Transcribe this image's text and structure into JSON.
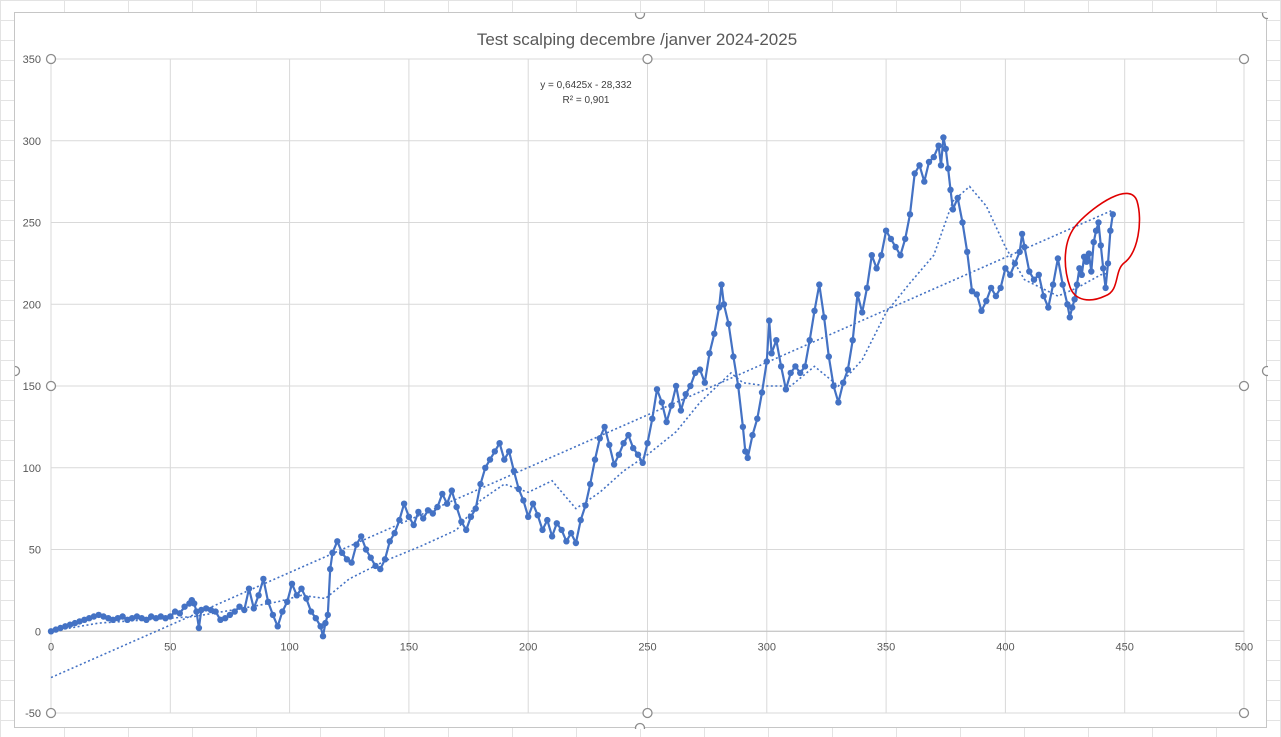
{
  "chart_data": {
    "type": "line",
    "title": "Test scalping decembre /janver 2024-2025",
    "xlabel": "",
    "ylabel": "",
    "xlim": [
      0,
      500
    ],
    "ylim": [
      -50,
      350
    ],
    "x_ticks": [
      0,
      50,
      100,
      150,
      200,
      250,
      300,
      350,
      400,
      450,
      500
    ],
    "y_ticks": [
      -50,
      0,
      50,
      100,
      150,
      200,
      250,
      300,
      350
    ],
    "x_tick_labels": [
      "0",
      "50",
      "100",
      "150",
      "200",
      "250",
      "300",
      "350",
      "400",
      "450",
      "500"
    ],
    "y_tick_labels": [
      "-50",
      "0",
      "50",
      "100",
      "150",
      "200",
      "250",
      "300",
      "350"
    ],
    "grid": true,
    "legend": "none",
    "series_color": "#4472C4",
    "annotation_color": "#E00000",
    "trendline": {
      "type": "linear",
      "slope": 0.6425,
      "intercept": -28.332,
      "x_range": [
        0,
        445
      ],
      "equation_label": "y = 0,6425x - 28,332",
      "r2_label": "R² = 0,901"
    },
    "moving_average": {
      "points": [
        [
          0,
          0
        ],
        [
          20,
          5
        ],
        [
          40,
          7
        ],
        [
          60,
          9
        ],
        [
          80,
          14
        ],
        [
          95,
          18
        ],
        [
          105,
          22
        ],
        [
          115,
          20
        ],
        [
          125,
          32
        ],
        [
          140,
          43
        ],
        [
          155,
          52
        ],
        [
          170,
          62
        ],
        [
          180,
          80
        ],
        [
          190,
          90
        ],
        [
          200,
          85
        ],
        [
          210,
          92
        ],
        [
          220,
          75
        ],
        [
          230,
          85
        ],
        [
          240,
          98
        ],
        [
          250,
          108
        ],
        [
          262,
          122
        ],
        [
          272,
          140
        ],
        [
          285,
          158
        ],
        [
          290,
          152
        ],
        [
          300,
          150
        ],
        [
          310,
          150
        ],
        [
          320,
          162
        ],
        [
          330,
          150
        ],
        [
          340,
          166
        ],
        [
          350,
          195
        ],
        [
          360,
          213
        ],
        [
          370,
          230
        ],
        [
          378,
          263
        ],
        [
          385,
          272
        ],
        [
          392,
          260
        ],
        [
          400,
          235
        ],
        [
          408,
          215
        ],
        [
          415,
          210
        ],
        [
          422,
          205
        ],
        [
          430,
          210
        ],
        [
          440,
          218
        ],
        [
          443,
          219
        ]
      ]
    },
    "series": [
      {
        "points": [
          [
            0,
            0
          ],
          [
            2,
            1
          ],
          [
            4,
            2
          ],
          [
            6,
            3
          ],
          [
            8,
            4
          ],
          [
            10,
            5
          ],
          [
            12,
            6
          ],
          [
            14,
            7
          ],
          [
            16,
            8
          ],
          [
            18,
            9
          ],
          [
            20,
            10
          ],
          [
            22,
            9
          ],
          [
            24,
            8
          ],
          [
            26,
            7
          ],
          [
            28,
            8
          ],
          [
            30,
            9
          ],
          [
            32,
            7
          ],
          [
            34,
            8
          ],
          [
            36,
            9
          ],
          [
            38,
            8
          ],
          [
            40,
            7
          ],
          [
            42,
            9
          ],
          [
            44,
            8
          ],
          [
            46,
            9
          ],
          [
            48,
            8
          ],
          [
            50,
            9
          ],
          [
            52,
            12
          ],
          [
            54,
            11
          ],
          [
            56,
            15
          ],
          [
            58,
            17
          ],
          [
            59,
            19
          ],
          [
            60,
            17
          ],
          [
            61,
            12
          ],
          [
            62,
            2
          ],
          [
            63,
            13
          ],
          [
            65,
            14
          ],
          [
            67,
            13
          ],
          [
            69,
            12
          ],
          [
            71,
            7
          ],
          [
            73,
            8
          ],
          [
            75,
            10
          ],
          [
            77,
            12
          ],
          [
            79,
            15
          ],
          [
            81,
            13
          ],
          [
            83,
            26
          ],
          [
            85,
            14
          ],
          [
            87,
            22
          ],
          [
            89,
            32
          ],
          [
            91,
            18
          ],
          [
            93,
            10
          ],
          [
            95,
            3
          ],
          [
            97,
            12
          ],
          [
            99,
            18
          ],
          [
            101,
            29
          ],
          [
            103,
            22
          ],
          [
            105,
            26
          ],
          [
            107,
            20
          ],
          [
            109,
            12
          ],
          [
            111,
            8
          ],
          [
            113,
            3
          ],
          [
            114,
            -3
          ],
          [
            115,
            5
          ],
          [
            116,
            10
          ],
          [
            117,
            38
          ],
          [
            118,
            48
          ],
          [
            120,
            55
          ],
          [
            122,
            48
          ],
          [
            124,
            44
          ],
          [
            126,
            42
          ],
          [
            128,
            53
          ],
          [
            130,
            58
          ],
          [
            132,
            50
          ],
          [
            134,
            45
          ],
          [
            136,
            40
          ],
          [
            138,
            38
          ],
          [
            140,
            44
          ],
          [
            142,
            55
          ],
          [
            144,
            60
          ],
          [
            146,
            68
          ],
          [
            148,
            78
          ],
          [
            150,
            70
          ],
          [
            152,
            65
          ],
          [
            154,
            73
          ],
          [
            156,
            69
          ],
          [
            158,
            74
          ],
          [
            160,
            72
          ],
          [
            162,
            76
          ],
          [
            164,
            84
          ],
          [
            166,
            78
          ],
          [
            168,
            86
          ],
          [
            170,
            76
          ],
          [
            172,
            67
          ],
          [
            174,
            62
          ],
          [
            176,
            70
          ],
          [
            178,
            75
          ],
          [
            180,
            90
          ],
          [
            182,
            100
          ],
          [
            184,
            105
          ],
          [
            186,
            110
          ],
          [
            188,
            115
          ],
          [
            190,
            105
          ],
          [
            192,
            110
          ],
          [
            194,
            98
          ],
          [
            196,
            87
          ],
          [
            198,
            80
          ],
          [
            200,
            70
          ],
          [
            202,
            78
          ],
          [
            204,
            71
          ],
          [
            206,
            62
          ],
          [
            208,
            68
          ],
          [
            210,
            58
          ],
          [
            212,
            66
          ],
          [
            214,
            62
          ],
          [
            216,
            55
          ],
          [
            218,
            60
          ],
          [
            220,
            54
          ],
          [
            222,
            68
          ],
          [
            224,
            77
          ],
          [
            226,
            90
          ],
          [
            228,
            105
          ],
          [
            230,
            118
          ],
          [
            232,
            125
          ],
          [
            234,
            114
          ],
          [
            236,
            102
          ],
          [
            238,
            108
          ],
          [
            240,
            115
          ],
          [
            242,
            120
          ],
          [
            244,
            112
          ],
          [
            246,
            108
          ],
          [
            248,
            103
          ],
          [
            250,
            115
          ],
          [
            252,
            130
          ],
          [
            254,
            148
          ],
          [
            256,
            140
          ],
          [
            258,
            128
          ],
          [
            260,
            138
          ],
          [
            262,
            150
          ],
          [
            264,
            135
          ],
          [
            266,
            145
          ],
          [
            268,
            150
          ],
          [
            270,
            158
          ],
          [
            272,
            160
          ],
          [
            274,
            152
          ],
          [
            276,
            170
          ],
          [
            278,
            182
          ],
          [
            280,
            198
          ],
          [
            281,
            212
          ],
          [
            282,
            200
          ],
          [
            284,
            188
          ],
          [
            286,
            168
          ],
          [
            288,
            150
          ],
          [
            290,
            125
          ],
          [
            291,
            110
          ],
          [
            292,
            106
          ],
          [
            294,
            120
          ],
          [
            296,
            130
          ],
          [
            298,
            146
          ],
          [
            300,
            165
          ],
          [
            301,
            190
          ],
          [
            302,
            170
          ],
          [
            304,
            178
          ],
          [
            306,
            162
          ],
          [
            308,
            148
          ],
          [
            310,
            158
          ],
          [
            312,
            162
          ],
          [
            314,
            158
          ],
          [
            316,
            162
          ],
          [
            318,
            178
          ],
          [
            320,
            196
          ],
          [
            322,
            212
          ],
          [
            324,
            192
          ],
          [
            326,
            168
          ],
          [
            328,
            150
          ],
          [
            330,
            140
          ],
          [
            332,
            152
          ],
          [
            334,
            160
          ],
          [
            336,
            178
          ],
          [
            338,
            206
          ],
          [
            340,
            195
          ],
          [
            342,
            210
          ],
          [
            344,
            230
          ],
          [
            346,
            222
          ],
          [
            348,
            230
          ],
          [
            350,
            245
          ],
          [
            352,
            240
          ],
          [
            354,
            235
          ],
          [
            356,
            230
          ],
          [
            358,
            240
          ],
          [
            360,
            255
          ],
          [
            362,
            280
          ],
          [
            364,
            285
          ],
          [
            366,
            275
          ],
          [
            368,
            287
          ],
          [
            370,
            290
          ],
          [
            372,
            297
          ],
          [
            373,
            285
          ],
          [
            374,
            302
          ],
          [
            375,
            295
          ],
          [
            376,
            283
          ],
          [
            377,
            270
          ],
          [
            378,
            258
          ],
          [
            380,
            265
          ],
          [
            382,
            250
          ],
          [
            384,
            232
          ],
          [
            386,
            208
          ],
          [
            388,
            206
          ],
          [
            390,
            196
          ],
          [
            392,
            202
          ],
          [
            394,
            210
          ],
          [
            396,
            205
          ],
          [
            398,
            210
          ],
          [
            400,
            222
          ],
          [
            402,
            218
          ],
          [
            404,
            225
          ],
          [
            406,
            232
          ],
          [
            407,
            243
          ],
          [
            408,
            235
          ],
          [
            410,
            220
          ],
          [
            412,
            215
          ],
          [
            414,
            218
          ],
          [
            416,
            205
          ],
          [
            418,
            198
          ],
          [
            420,
            212
          ],
          [
            422,
            228
          ],
          [
            424,
            212
          ],
          [
            426,
            200
          ],
          [
            427,
            192
          ],
          [
            428,
            198
          ],
          [
            429,
            203
          ],
          [
            430,
            212
          ],
          [
            431,
            222
          ],
          [
            432,
            218
          ],
          [
            433,
            229
          ],
          [
            434,
            226
          ],
          [
            435,
            231
          ],
          [
            436,
            220
          ],
          [
            437,
            238
          ],
          [
            438,
            245
          ],
          [
            439,
            250
          ],
          [
            440,
            236
          ],
          [
            441,
            222
          ],
          [
            442,
            210
          ],
          [
            443,
            225
          ],
          [
            444,
            245
          ],
          [
            445,
            255
          ]
        ]
      }
    ]
  }
}
